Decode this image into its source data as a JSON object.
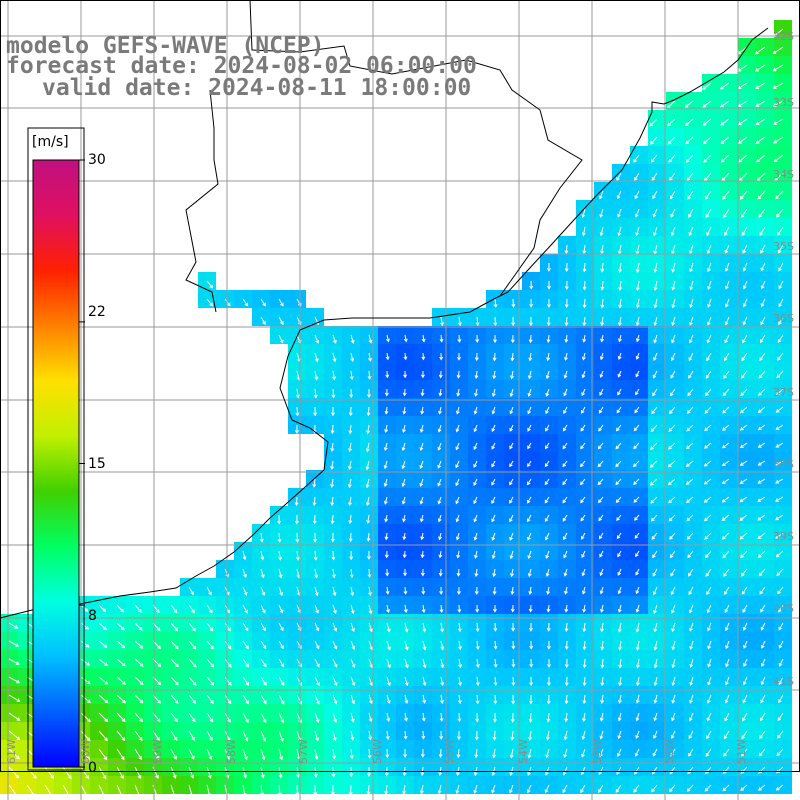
{
  "title": {
    "line1": "modelo GEFS-WAVE (NCEP)",
    "line2": "forecast date: 2024-08-02 06:00:00",
    "line3": "valid date: 2024-08-11 18:00:00"
  },
  "colorbar": {
    "unit": "[m/s]",
    "ticks": [
      "30",
      "22",
      "15",
      "8",
      "0"
    ],
    "tick_values": [
      30,
      22,
      15,
      8,
      0
    ],
    "min": 0,
    "max": 30,
    "colors": [
      "#0000ff",
      "#0060ff",
      "#00c0ff",
      "#00ffe0",
      "#00ff60",
      "#40d000",
      "#c0f000",
      "#ffe000",
      "#ff8000",
      "#ff2000",
      "#e01060",
      "#c01080"
    ]
  },
  "lat_labels": [
    "32S",
    "33S",
    "34S",
    "35S",
    "36S",
    "37S",
    "38S",
    "39S",
    "40S",
    "41S"
  ],
  "lon_labels": [
    "61W",
    "60W",
    "59W",
    "58W",
    "57W",
    "56W",
    "55W",
    "54W",
    "53W",
    "52W",
    "51W"
  ],
  "map": {
    "grid_color": "#9a9a9a",
    "coast_color": "#000000",
    "arrow_color": "#ffffff"
  }
}
